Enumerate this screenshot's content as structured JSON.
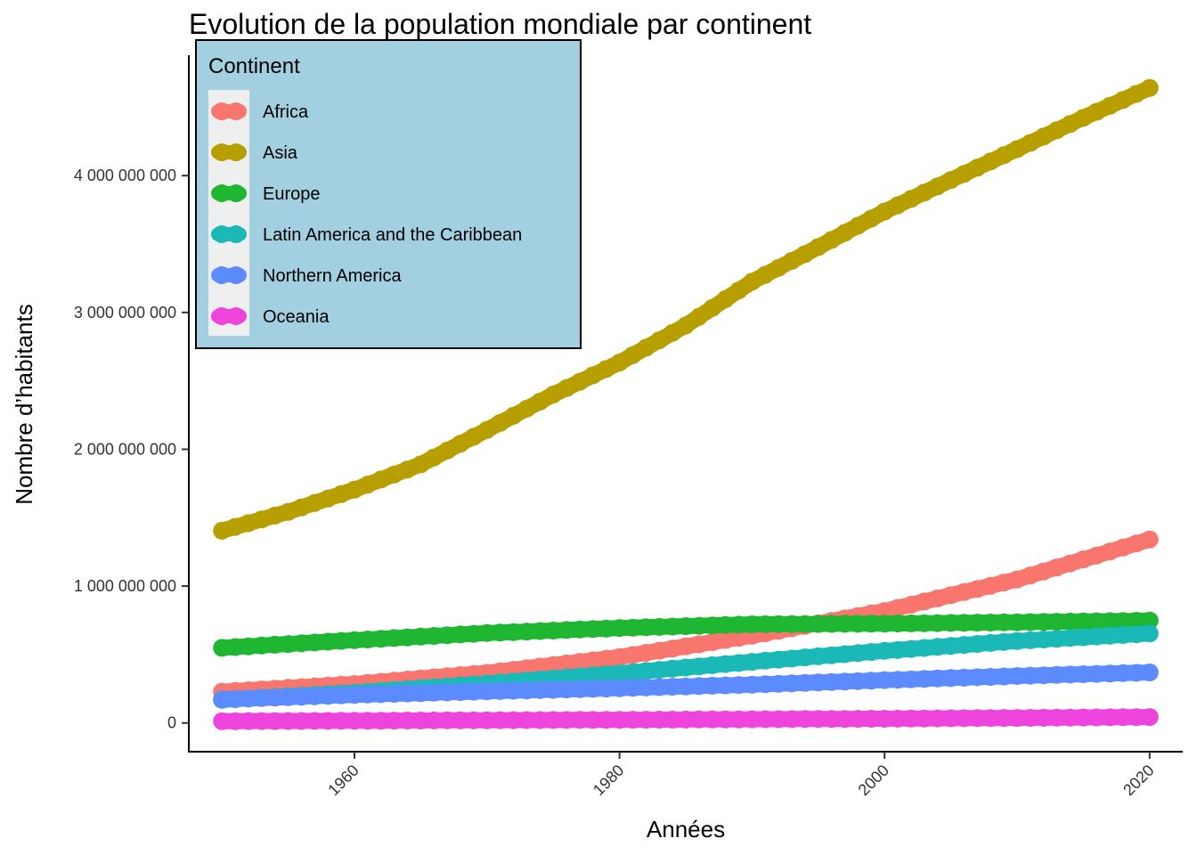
{
  "title": "Evolution de la population mondiale par continent",
  "chart_data": {
    "type": "line",
    "title": "Evolution de la population mondiale par continent",
    "xlabel": "Années",
    "ylabel": "Nombre d’habitants",
    "xlim": [
      1947.5,
      2022.5
    ],
    "ylim": [
      -210000000,
      4880000000
    ],
    "x_ticks": [
      1960,
      1980,
      2000,
      2020
    ],
    "y_ticks": [
      0,
      1000000000,
      2000000000,
      3000000000,
      4000000000
    ],
    "y_tick_labels": [
      "0",
      "1 000 000 000",
      "2 000 000 000",
      "3 000 000 000",
      "4 000 000 000"
    ],
    "x_tick_labels": [
      "1960",
      "1980",
      "2000",
      "2020"
    ],
    "grid": false,
    "marker": "circle",
    "legend": {
      "title": "Continent",
      "placement": "top-left",
      "background": "#a3d0e0"
    },
    "x_start": 1950,
    "x_end": 2020,
    "series": [
      {
        "name": "Africa",
        "color": "#f8766d",
        "x": [
          1950,
          1960,
          1970,
          1980,
          1990,
          2000,
          2010,
          2020
        ],
        "values": [
          228000000,
          285000000,
          366000000,
          481000000,
          638000000,
          818000000,
          1049000000,
          1341000000
        ]
      },
      {
        "name": "Asia",
        "color": "#b79f00",
        "x": [
          1950,
          1955,
          1960,
          1965,
          1970,
          1975,
          1980,
          1985,
          1990,
          1995,
          2000,
          2005,
          2010,
          2015,
          2020
        ],
        "values": [
          1405000000,
          1543000000,
          1705000000,
          1890000000,
          2142000000,
          2400000000,
          2634000000,
          2905000000,
          3225000000,
          3478000000,
          3738000000,
          3968000000,
          4194000000,
          4423000000,
          4641000000
        ]
      },
      {
        "name": "Europe",
        "color": "#1fb631",
        "x": [
          1950,
          1960,
          1970,
          1980,
          1990,
          2000,
          2010,
          2020
        ],
        "values": [
          549000000,
          605000000,
          657000000,
          694000000,
          721000000,
          726000000,
          736000000,
          748000000
        ]
      },
      {
        "name": "Latin America and the Caribbean",
        "color": "#1bb8b8",
        "x": [
          1950,
          1960,
          1970,
          1980,
          1990,
          2000,
          2010,
          2020
        ],
        "values": [
          169000000,
          221000000,
          288000000,
          363000000,
          447000000,
          527000000,
          599000000,
          654000000
        ]
      },
      {
        "name": "Northern America",
        "color": "#5b8bff",
        "x": [
          1950,
          1960,
          1970,
          1980,
          1990,
          2000,
          2010,
          2020
        ],
        "values": [
          173000000,
          205000000,
          231000000,
          254000000,
          280000000,
          313000000,
          343000000,
          369000000
        ]
      },
      {
        "name": "Oceania",
        "color": "#ee44dd",
        "x": [
          1950,
          1960,
          1970,
          1980,
          1990,
          2000,
          2010,
          2020
        ],
        "values": [
          13000000,
          16000000,
          20000000,
          23000000,
          27000000,
          31000000,
          37000000,
          43000000
        ]
      }
    ]
  }
}
